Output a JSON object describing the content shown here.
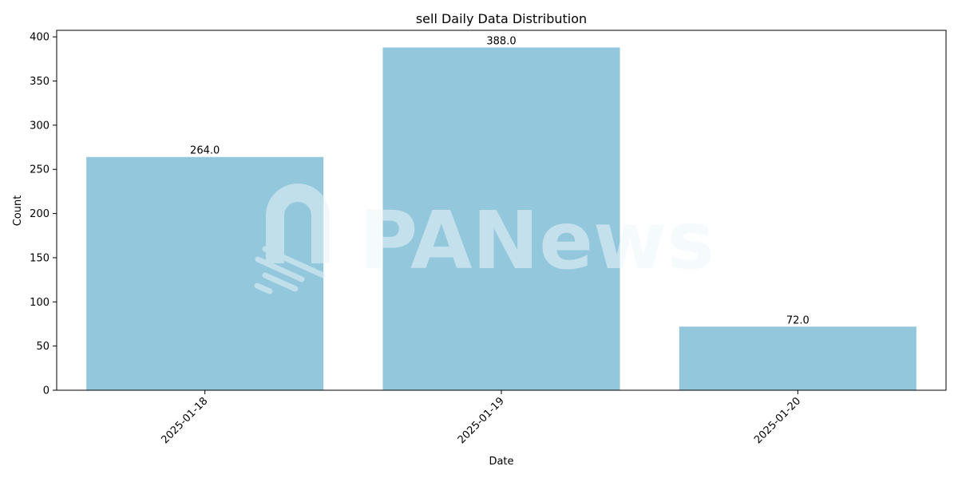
{
  "chart_data": {
    "type": "bar",
    "title": "sell Daily Data Distribution",
    "xlabel": "Date",
    "ylabel": "Count",
    "categories": [
      "2025-01-18",
      "2025-01-19",
      "2025-01-20"
    ],
    "values": [
      264.0,
      388.0,
      72.0
    ],
    "data_labels": [
      "264.0",
      "388.0",
      "72.0"
    ],
    "ylim": [
      0,
      407.4
    ],
    "yticks": [
      0,
      50,
      100,
      150,
      200,
      250,
      300,
      350,
      400
    ],
    "grid": false,
    "bar_color": "#92c7dc",
    "x_tick_rotation": 45
  },
  "watermark": {
    "text": "PANews"
  }
}
